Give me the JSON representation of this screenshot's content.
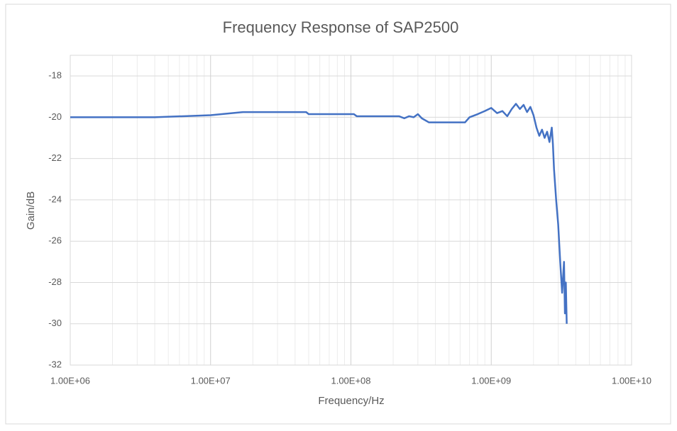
{
  "chart_data": {
    "type": "line",
    "title": "Frequency Response of SAP2500",
    "x_label": "Frequency/Hz",
    "y_label": "Gain/dB",
    "x_scale": "log",
    "grid": true,
    "minor_grid": true,
    "xlim": [
      1000000,
      10000000000
    ],
    "xticks": [
      {
        "value": 1000000,
        "label": "1.00E+06"
      },
      {
        "value": 10000000,
        "label": "1.00E+07"
      },
      {
        "value": 100000000,
        "label": "1.00E+08"
      },
      {
        "value": 1000000000,
        "label": "1.00E+09"
      },
      {
        "value": 10000000000,
        "label": "1.00E+10"
      }
    ],
    "ylim": [
      -32,
      -17
    ],
    "yticks": [
      -32,
      -30,
      -28,
      -26,
      -24,
      -22,
      -20,
      -18
    ],
    "series": [
      {
        "color": "#4472c4",
        "x": [
          1000000,
          4000000,
          10000000,
          17000000,
          48000000,
          50000000,
          105000000,
          110000000,
          220000000,
          240000000,
          260000000,
          280000000,
          300000000,
          320000000,
          360000000,
          650000000,
          700000000,
          800000000,
          900000000,
          1000000000,
          1100000000,
          1200000000,
          1300000000,
          1400000000,
          1500000000,
          1600000000,
          1700000000,
          1800000000,
          1900000000,
          2000000000,
          2100000000,
          2200000000,
          2300000000,
          2400000000,
          2500000000,
          2600000000,
          2700000000,
          2750000000,
          2800000000,
          2900000000,
          3000000000,
          3100000000,
          3200000000,
          3300000000,
          3350000000,
          3400000000,
          3450000000
        ],
        "values": [
          -20,
          -20,
          -19.9,
          -19.75,
          -19.75,
          -19.85,
          -19.85,
          -19.95,
          -19.95,
          -20.05,
          -19.95,
          -20,
          -19.85,
          -20.05,
          -20.25,
          -20.25,
          -20,
          -19.85,
          -19.7,
          -19.55,
          -19.8,
          -19.7,
          -19.95,
          -19.6,
          -19.35,
          -19.6,
          -19.4,
          -19.75,
          -19.5,
          -19.9,
          -20.5,
          -20.9,
          -20.6,
          -21,
          -20.7,
          -21.2,
          -20.5,
          -21.3,
          -22.5,
          -24,
          -25.2,
          -27,
          -28.5,
          -27,
          -29.5,
          -28,
          -30
        ]
      }
    ]
  }
}
